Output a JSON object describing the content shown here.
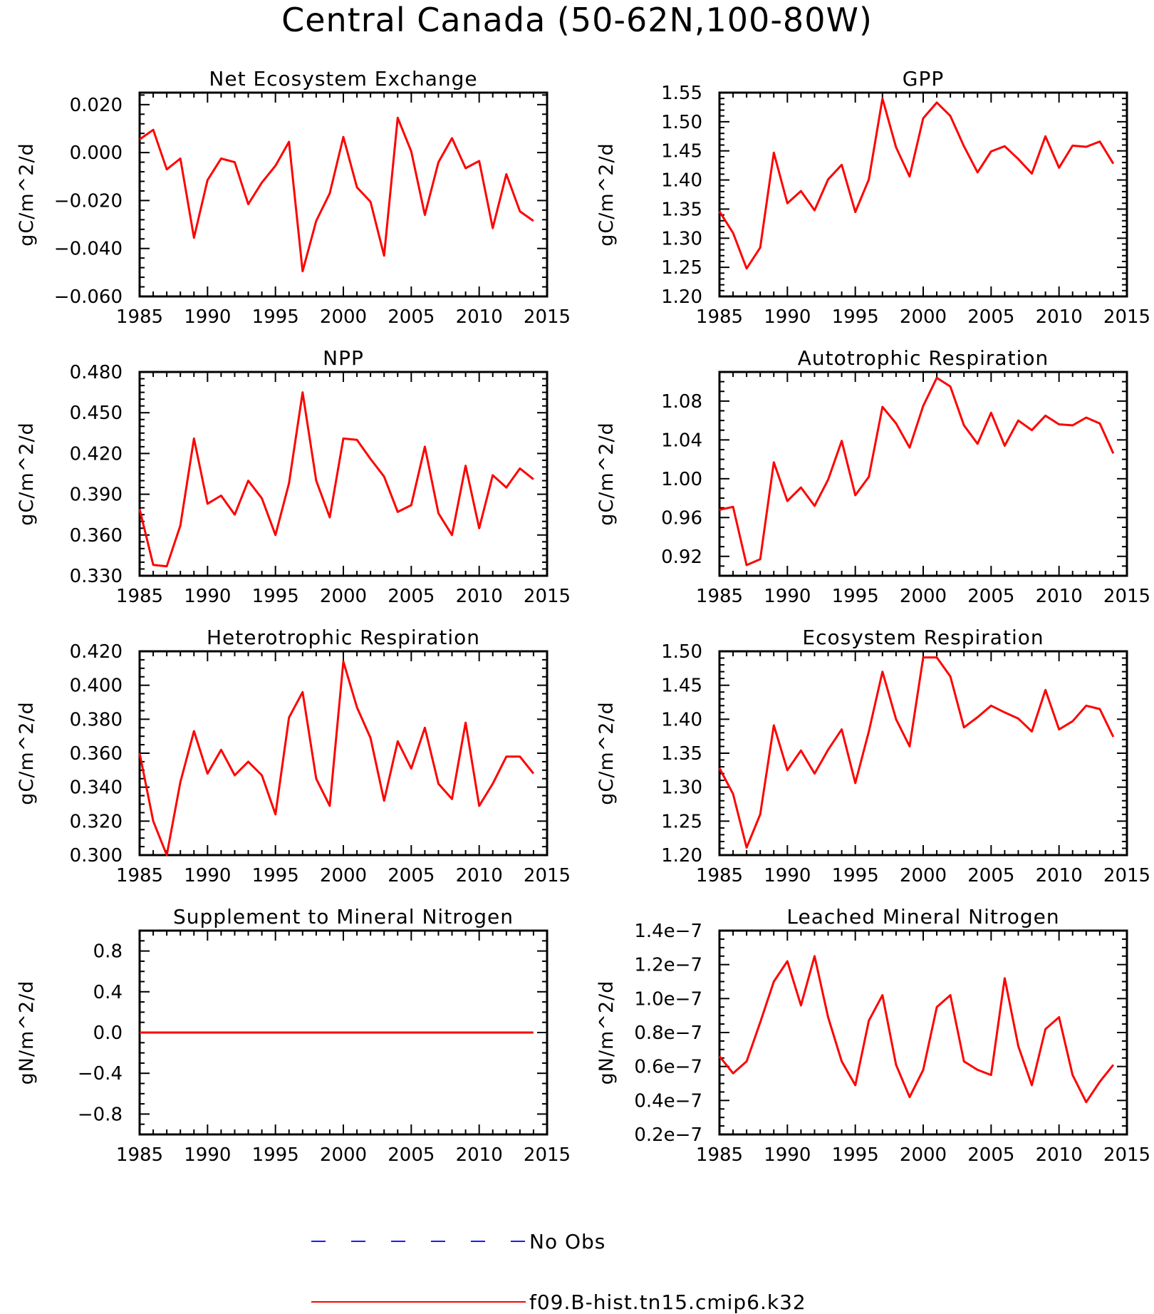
{
  "title": "Central Canada (50-62N,100-80W)",
  "legend": [
    {
      "label": "No Obs",
      "color": "#1a1aff",
      "style": "dashed"
    },
    {
      "label": "f09.B-hist.tn15.cmip6.k32",
      "color": "#ff0000",
      "style": "solid"
    }
  ],
  "chart_data": [
    {
      "type": "line",
      "title": "Net Ecosystem Exchange",
      "ylabel": "gC/m^2/d",
      "xlim": [
        1985,
        2015
      ],
      "ylim": [
        -0.06,
        0.025
      ],
      "xticks": [
        "1985",
        "1990",
        "1995",
        "2000",
        "2005",
        "2010",
        "2015"
      ],
      "yticks": [
        {
          "v": 0.02,
          "label": "0.020"
        },
        {
          "v": 0.0,
          "label": "0.000"
        },
        {
          "v": -0.02,
          "label": "−0.020"
        },
        {
          "v": -0.04,
          "label": "−0.040"
        },
        {
          "v": -0.06,
          "label": "−0.060"
        }
      ],
      "yminor": 5,
      "x": [
        1985,
        1986,
        1987,
        1988,
        1989,
        1990,
        1991,
        1992,
        1993,
        1994,
        1995,
        1996,
        1997,
        1998,
        1999,
        2000,
        2001,
        2002,
        2003,
        2004,
        2005,
        2006,
        2007,
        2008,
        2009,
        2010,
        2011,
        2012,
        2013,
        2014
      ],
      "series": [
        {
          "name": "f09.B-hist.tn15.cmip6.k32",
          "color": "#ff0000",
          "values": [
            0.0055,
            0.0095,
            -0.007,
            -0.0025,
            -0.0355,
            -0.0115,
            -0.0025,
            -0.004,
            -0.0215,
            -0.0125,
            -0.0055,
            0.0045,
            -0.0495,
            -0.0285,
            -0.017,
            0.0065,
            -0.0145,
            -0.0205,
            -0.043,
            0.0145,
            0.0005,
            -0.026,
            -0.004,
            0.006,
            -0.0065,
            -0.0035,
            -0.0315,
            -0.009,
            -0.0245,
            -0.0285
          ]
        }
      ]
    },
    {
      "type": "line",
      "title": "GPP",
      "ylabel": "gC/m^2/d",
      "xlim": [
        1985,
        2015
      ],
      "ylim": [
        1.2,
        1.55
      ],
      "xticks": [
        "1985",
        "1990",
        "1995",
        "2000",
        "2005",
        "2010",
        "2015"
      ],
      "yticks": [
        {
          "v": 1.55,
          "label": "1.55"
        },
        {
          "v": 1.5,
          "label": "1.50"
        },
        {
          "v": 1.45,
          "label": "1.45"
        },
        {
          "v": 1.4,
          "label": "1.40"
        },
        {
          "v": 1.35,
          "label": "1.35"
        },
        {
          "v": 1.3,
          "label": "1.30"
        },
        {
          "v": 1.25,
          "label": "1.25"
        },
        {
          "v": 1.2,
          "label": "1.20"
        }
      ],
      "yminor": 5,
      "x": [
        1985,
        1986,
        1987,
        1988,
        1989,
        1990,
        1991,
        1992,
        1993,
        1994,
        1995,
        1996,
        1997,
        1998,
        1999,
        2000,
        2001,
        2002,
        2003,
        2004,
        2005,
        2006,
        2007,
        2008,
        2009,
        2010,
        2011,
        2012,
        2013,
        2014
      ],
      "series": [
        {
          "name": "f09.B-hist.tn15.cmip6.k32",
          "color": "#ff0000",
          "values": [
            1.346,
            1.309,
            1.248,
            1.284,
            1.447,
            1.36,
            1.381,
            1.348,
            1.401,
            1.426,
            1.345,
            1.401,
            1.54,
            1.456,
            1.406,
            1.506,
            1.533,
            1.51,
            1.458,
            1.413,
            1.449,
            1.458,
            1.436,
            1.411,
            1.475,
            1.421,
            1.459,
            1.457,
            1.466,
            1.428
          ]
        }
      ]
    },
    {
      "type": "line",
      "title": "NPP",
      "ylabel": "gC/m^2/d",
      "xlim": [
        1985,
        2015
      ],
      "ylim": [
        0.33,
        0.48
      ],
      "xticks": [
        "1985",
        "1990",
        "1995",
        "2000",
        "2005",
        "2010",
        "2015"
      ],
      "yticks": [
        {
          "v": 0.48,
          "label": "0.480"
        },
        {
          "v": 0.45,
          "label": "0.450"
        },
        {
          "v": 0.42,
          "label": "0.420"
        },
        {
          "v": 0.39,
          "label": "0.390"
        },
        {
          "v": 0.36,
          "label": "0.360"
        },
        {
          "v": 0.33,
          "label": "0.330"
        }
      ],
      "yminor": 6,
      "x": [
        1985,
        1986,
        1987,
        1988,
        1989,
        1990,
        1991,
        1992,
        1993,
        1994,
        1995,
        1996,
        1997,
        1998,
        1999,
        2000,
        2001,
        2002,
        2003,
        2004,
        2005,
        2006,
        2007,
        2008,
        2009,
        2010,
        2011,
        2012,
        2013,
        2014
      ],
      "series": [
        {
          "name": "f09.B-hist.tn15.cmip6.k32",
          "color": "#ff0000",
          "values": [
            0.379,
            0.338,
            0.337,
            0.367,
            0.431,
            0.383,
            0.389,
            0.375,
            0.4,
            0.387,
            0.36,
            0.398,
            0.465,
            0.4,
            0.373,
            0.431,
            0.43,
            0.416,
            0.403,
            0.377,
            0.382,
            0.425,
            0.376,
            0.36,
            0.411,
            0.365,
            0.404,
            0.395,
            0.409,
            0.401
          ]
        }
      ]
    },
    {
      "type": "line",
      "title": "Autotrophic Respiration",
      "ylabel": "gC/m^2/d",
      "xlim": [
        1985,
        2015
      ],
      "ylim": [
        0.9,
        1.11
      ],
      "xticks": [
        "1985",
        "1990",
        "1995",
        "2000",
        "2005",
        "2010",
        "2015"
      ],
      "yticks": [
        {
          "v": 1.08,
          "label": "1.08"
        },
        {
          "v": 1.04,
          "label": "1.04"
        },
        {
          "v": 1.0,
          "label": "1.00"
        },
        {
          "v": 0.96,
          "label": "0.96"
        },
        {
          "v": 0.92,
          "label": "0.92"
        }
      ],
      "yminor": 4,
      "x": [
        1985,
        1986,
        1987,
        1988,
        1989,
        1990,
        1991,
        1992,
        1993,
        1994,
        1995,
        1996,
        1997,
        1998,
        1999,
        2000,
        2001,
        2002,
        2003,
        2004,
        2005,
        2006,
        2007,
        2008,
        2009,
        2010,
        2011,
        2012,
        2013,
        2014
      ],
      "series": [
        {
          "name": "f09.B-hist.tn15.cmip6.k32",
          "color": "#ff0000",
          "values": [
            0.968,
            0.971,
            0.911,
            0.917,
            1.017,
            0.977,
            0.991,
            0.972,
            0.999,
            1.039,
            0.983,
            1.002,
            1.074,
            1.057,
            1.032,
            1.075,
            1.104,
            1.095,
            1.055,
            1.036,
            1.068,
            1.034,
            1.06,
            1.05,
            1.065,
            1.056,
            1.055,
            1.063,
            1.057,
            1.026
          ]
        }
      ]
    },
    {
      "type": "line",
      "title": "Heterotrophic Respiration",
      "ylabel": "gC/m^2/d",
      "xlim": [
        1985,
        2015
      ],
      "ylim": [
        0.3,
        0.42
      ],
      "xticks": [
        "1985",
        "1990",
        "1995",
        "2000",
        "2005",
        "2010",
        "2015"
      ],
      "yticks": [
        {
          "v": 0.42,
          "label": "0.420"
        },
        {
          "v": 0.4,
          "label": "0.400"
        },
        {
          "v": 0.38,
          "label": "0.380"
        },
        {
          "v": 0.36,
          "label": "0.360"
        },
        {
          "v": 0.34,
          "label": "0.340"
        },
        {
          "v": 0.32,
          "label": "0.320"
        },
        {
          "v": 0.3,
          "label": "0.300"
        }
      ],
      "yminor": 4,
      "x": [
        1985,
        1986,
        1987,
        1988,
        1989,
        1990,
        1991,
        1992,
        1993,
        1994,
        1995,
        1996,
        1997,
        1998,
        1999,
        2000,
        2001,
        2002,
        2003,
        2004,
        2005,
        2006,
        2007,
        2008,
        2009,
        2010,
        2011,
        2012,
        2013,
        2014
      ],
      "series": [
        {
          "name": "f09.B-hist.tn15.cmip6.k32",
          "color": "#ff0000",
          "values": [
            0.36,
            0.32,
            0.3,
            0.343,
            0.373,
            0.348,
            0.362,
            0.347,
            0.355,
            0.347,
            0.324,
            0.381,
            0.396,
            0.345,
            0.329,
            0.414,
            0.387,
            0.369,
            0.332,
            0.367,
            0.351,
            0.375,
            0.342,
            0.333,
            0.378,
            0.329,
            0.342,
            0.358,
            0.358,
            0.348
          ]
        }
      ]
    },
    {
      "type": "line",
      "title": "Ecosystem Respiration",
      "ylabel": "gC/m^2/d",
      "xlim": [
        1985,
        2015
      ],
      "ylim": [
        1.2,
        1.5
      ],
      "xticks": [
        "1985",
        "1990",
        "1995",
        "2000",
        "2005",
        "2010",
        "2015"
      ],
      "yticks": [
        {
          "v": 1.5,
          "label": "1.50"
        },
        {
          "v": 1.45,
          "label": "1.45"
        },
        {
          "v": 1.4,
          "label": "1.40"
        },
        {
          "v": 1.35,
          "label": "1.35"
        },
        {
          "v": 1.3,
          "label": "1.30"
        },
        {
          "v": 1.25,
          "label": "1.25"
        },
        {
          "v": 1.2,
          "label": "1.20"
        }
      ],
      "yminor": 5,
      "x": [
        1985,
        1986,
        1987,
        1988,
        1989,
        1990,
        1991,
        1992,
        1993,
        1994,
        1995,
        1996,
        1997,
        1998,
        1999,
        2000,
        2001,
        2002,
        2003,
        2004,
        2005,
        2006,
        2007,
        2008,
        2009,
        2010,
        2011,
        2012,
        2013,
        2014
      ],
      "series": [
        {
          "name": "f09.B-hist.tn15.cmip6.k32",
          "color": "#ff0000",
          "values": [
            1.328,
            1.29,
            1.211,
            1.26,
            1.391,
            1.325,
            1.354,
            1.32,
            1.355,
            1.385,
            1.306,
            1.382,
            1.47,
            1.4,
            1.36,
            1.491,
            1.491,
            1.463,
            1.388,
            1.403,
            1.42,
            1.41,
            1.401,
            1.382,
            1.443,
            1.385,
            1.397,
            1.42,
            1.415,
            1.374
          ]
        }
      ]
    },
    {
      "type": "line",
      "title": "Supplement to Mineral Nitrogen",
      "ylabel": "gN/m^2/d",
      "xlim": [
        1985,
        2015
      ],
      "ylim": [
        -1.0,
        1.0
      ],
      "xticks": [
        "1985",
        "1990",
        "1995",
        "2000",
        "2005",
        "2010",
        "2015"
      ],
      "yticks": [
        {
          "v": 0.8,
          "label": "0.8"
        },
        {
          "v": 0.4,
          "label": "0.4"
        },
        {
          "v": 0.0,
          "label": "0.0"
        },
        {
          "v": -0.4,
          "label": "−0.4"
        },
        {
          "v": -0.8,
          "label": "−0.8"
        }
      ],
      "yminor": 4,
      "x": [
        1985,
        1986,
        1987,
        1988,
        1989,
        1990,
        1991,
        1992,
        1993,
        1994,
        1995,
        1996,
        1997,
        1998,
        1999,
        2000,
        2001,
        2002,
        2003,
        2004,
        2005,
        2006,
        2007,
        2008,
        2009,
        2010,
        2011,
        2012,
        2013,
        2014
      ],
      "series": [
        {
          "name": "f09.B-hist.tn15.cmip6.k32",
          "color": "#ff0000",
          "values": [
            0,
            0,
            0,
            0,
            0,
            0,
            0,
            0,
            0,
            0,
            0,
            0,
            0,
            0,
            0,
            0,
            0,
            0,
            0,
            0,
            0,
            0,
            0,
            0,
            0,
            0,
            0,
            0,
            0,
            0
          ]
        }
      ]
    },
    {
      "type": "line",
      "title": "Leached Mineral Nitrogen",
      "ylabel": "gN/m^2/d",
      "xlim": [
        1985,
        2015
      ],
      "ylim": [
        2e-08,
        1.4e-07
      ],
      "xticks": [
        "1985",
        "1990",
        "1995",
        "2000",
        "2005",
        "2010",
        "2015"
      ],
      "yticks": [
        {
          "v": 1.4e-07,
          "label": "1.4e−7"
        },
        {
          "v": 1.2e-07,
          "label": "1.2e−7"
        },
        {
          "v": 1e-07,
          "label": "1.0e−7"
        },
        {
          "v": 8e-08,
          "label": "0.8e−7"
        },
        {
          "v": 6e-08,
          "label": "0.6e−7"
        },
        {
          "v": 4e-08,
          "label": "0.4e−7"
        },
        {
          "v": 2e-08,
          "label": "0.2e−7"
        }
      ],
      "yminor": 4,
      "x": [
        1985,
        1986,
        1987,
        1988,
        1989,
        1990,
        1991,
        1992,
        1993,
        1994,
        1995,
        1996,
        1997,
        1998,
        1999,
        2000,
        2001,
        2002,
        2003,
        2004,
        2005,
        2006,
        2007,
        2008,
        2009,
        2010,
        2011,
        2012,
        2013,
        2014
      ],
      "series": [
        {
          "name": "f09.B-hist.tn15.cmip6.k32",
          "color": "#ff0000",
          "values": [
            6.6e-08,
            5.6e-08,
            6.3e-08,
            8.6e-08,
            1.1e-07,
            1.22e-07,
            9.6e-08,
            1.25e-07,
            8.9e-08,
            6.3e-08,
            4.9e-08,
            8.7e-08,
            1.02e-07,
            6.1e-08,
            4.2e-08,
            5.8e-08,
            9.5e-08,
            1.02e-07,
            6.3e-08,
            5.8e-08,
            5.5e-08,
            1.12e-07,
            7.2e-08,
            4.9e-08,
            8.2e-08,
            8.9e-08,
            5.5e-08,
            3.9e-08,
            5.1e-08,
            6.1e-08
          ]
        }
      ]
    }
  ]
}
